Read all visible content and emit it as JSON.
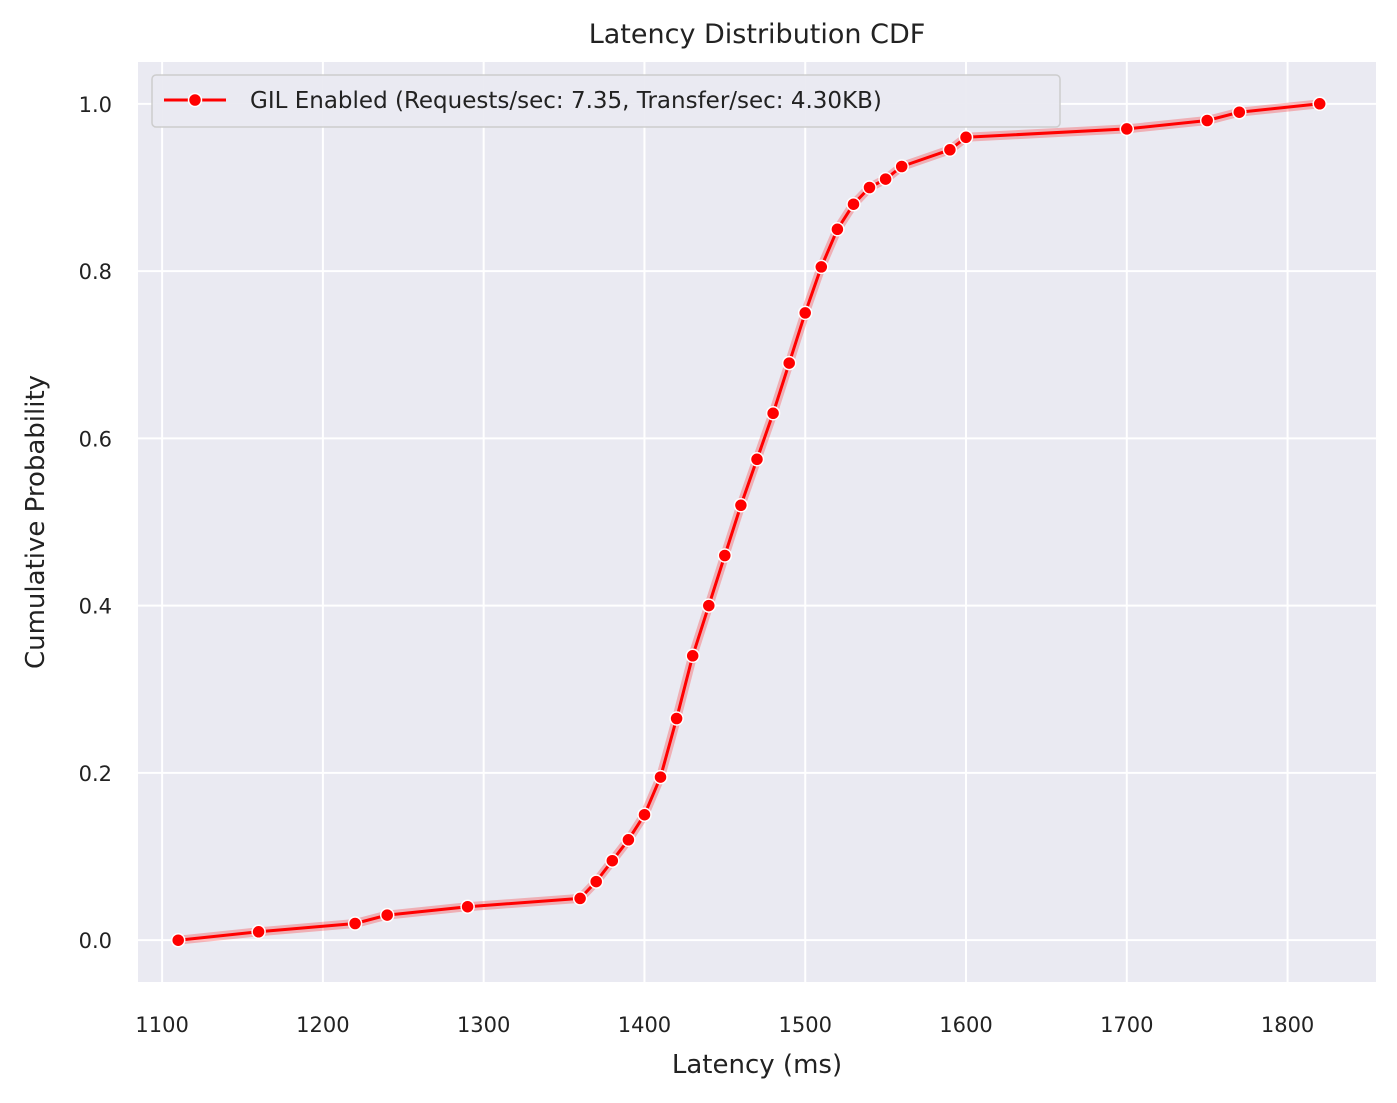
{
  "chart_data": {
    "type": "line",
    "title": "Latency Distribution CDF",
    "xlabel": "Latency (ms)",
    "ylabel": "Cumulative Probability",
    "xlim": [
      1085,
      1855
    ],
    "ylim": [
      -0.05,
      1.05
    ],
    "x_ticks": [
      "1100",
      "1200",
      "1300",
      "1400",
      "1500",
      "1600",
      "1700",
      "1800"
    ],
    "x_tick_values": [
      1100,
      1200,
      1300,
      1400,
      1500,
      1600,
      1700,
      1800
    ],
    "y_ticks": [
      "0.0",
      "0.2",
      "0.4",
      "0.6",
      "0.8",
      "1.0"
    ],
    "y_tick_values": [
      0,
      0.2,
      0.4,
      0.6,
      0.8,
      1.0
    ],
    "grid": true,
    "legend_position": "upper-left",
    "background_color": "#eaeaf2",
    "grid_color": "#ffffff",
    "series": [
      {
        "name": "GIL Enabled (Requests/sec: 7.35, Transfer/sec: 4.30KB)",
        "color": "#ff0000",
        "marker": "circle",
        "x": [
          1110,
          1160,
          1220,
          1240,
          1290,
          1360,
          1370,
          1380,
          1390,
          1400,
          1410,
          1420,
          1430,
          1440,
          1450,
          1460,
          1470,
          1480,
          1490,
          1500,
          1510,
          1520,
          1530,
          1540,
          1550,
          1560,
          1590,
          1600,
          1700,
          1750,
          1770,
          1820
        ],
        "y": [
          0.0,
          0.01,
          0.02,
          0.03,
          0.04,
          0.05,
          0.07,
          0.095,
          0.12,
          0.15,
          0.195,
          0.265,
          0.34,
          0.4,
          0.46,
          0.52,
          0.575,
          0.63,
          0.69,
          0.75,
          0.805,
          0.85,
          0.88,
          0.9,
          0.91,
          0.925,
          0.945,
          0.96,
          0.97,
          0.98,
          0.99,
          1.0
        ]
      }
    ]
  }
}
